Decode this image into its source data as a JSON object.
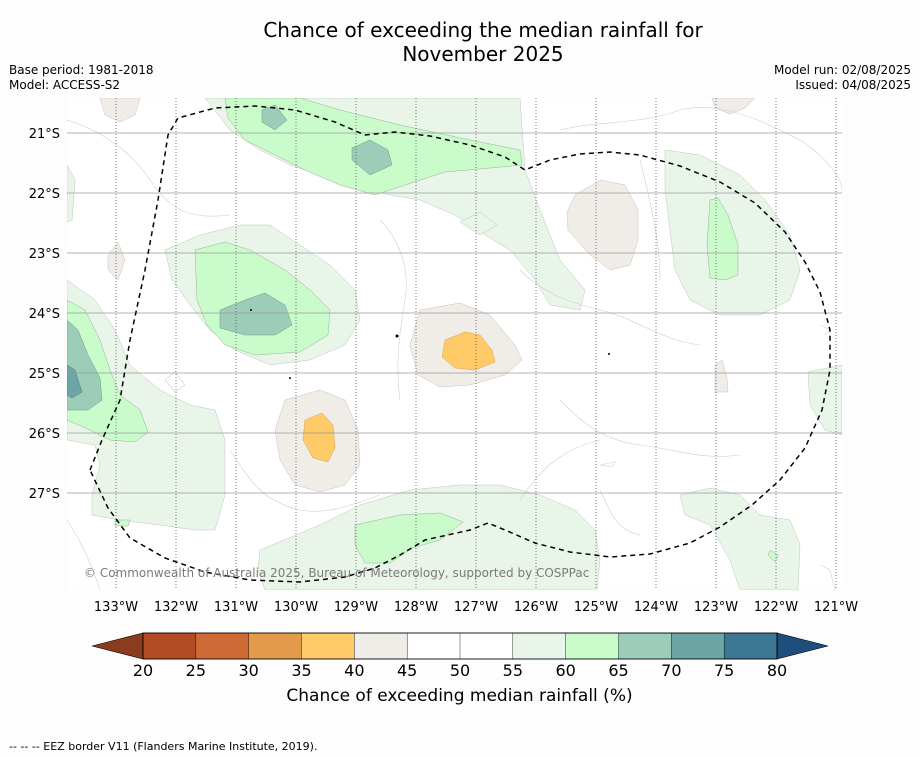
{
  "title_line1": "Chance of exceeding the median rainfall for",
  "title_line2": "November 2025",
  "meta_left": {
    "base_period": "Base period: 1981-2018",
    "model": "Model: ACCESS-S2"
  },
  "meta_right": {
    "model_run": "Model run: 02/08/2025",
    "issued": "Issued: 04/08/2025"
  },
  "copyright": "© Commonwealth of Australia 2025, Bureau of Meteorology, supported by COSPPac",
  "lon_labels": [
    "133°W",
    "132°W",
    "131°W",
    "130°W",
    "129°W",
    "128°W",
    "127°W",
    "126°W",
    "125°W",
    "124°W",
    "123°W",
    "122°W",
    "121°W"
  ],
  "lat_labels": [
    "21°S",
    "22°S",
    "23°S",
    "24°S",
    "25°S",
    "26°S",
    "27°S"
  ],
  "colorbar": {
    "ticks": [
      "20",
      "25",
      "30",
      "35",
      "40",
      "45",
      "50",
      "55",
      "60",
      "65",
      "70",
      "75",
      "80"
    ],
    "colors": [
      "#b24a23",
      "#cf6a35",
      "#e39a4a",
      "#fecb68",
      "#f0ece8",
      "#ffffff",
      "#ffffff",
      "#eaf5ea",
      "#c9fcca",
      "#9ccdb8",
      "#6da5a6",
      "#3c7794"
    ],
    "low_extend": "#8c3c1e",
    "high_extend": "#1f4e7c",
    "label": "Chance of exceeding median rainfall (%)"
  },
  "footer": "--  --  -- EEZ border V11 (Flanders Marine Institute, 2019)."
}
